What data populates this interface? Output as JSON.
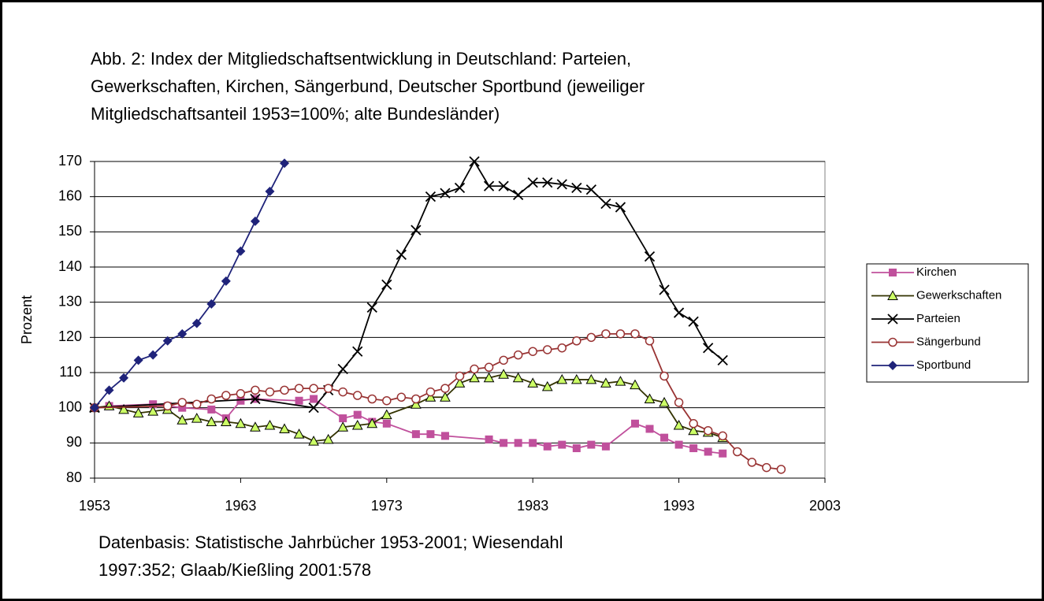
{
  "chart_data": {
    "type": "line",
    "title": [
      "Abb. 2: Index der Mitgliedschaftsentwicklung in Deutschland: Parteien,",
      "Gewerkschaften, Kirchen, Sängerbund, Deutscher Sportbund (jeweiliger",
      "Mitgliedschaftsanteil 1953=100%; alte Bundesländer)"
    ],
    "ylabel": "Prozent",
    "note": [
      "Datenbasis: Statistische Jahrbücher 1953-2001; Wiesendahl",
      "1997:352; Glaab/Kießling 2001:578"
    ],
    "xlim": [
      1953,
      2003
    ],
    "xticks": [
      1953,
      1963,
      1973,
      1983,
      1993,
      2003
    ],
    "ylim": [
      80,
      170
    ],
    "yticks": [
      80,
      90,
      100,
      110,
      120,
      130,
      140,
      150,
      160,
      170
    ],
    "grid": true,
    "legend": "right",
    "series": [
      {
        "name": "Kirchen",
        "color": "#c0509c",
        "marker": "square",
        "x": [
          1953,
          1954,
          1957,
          1958,
          1959,
          1961,
          1962,
          1963,
          1964,
          1967,
          1968,
          1970,
          1971,
          1972,
          1973,
          1975,
          1976,
          1977,
          1980,
          1981,
          1982,
          1983,
          1984,
          1985,
          1986,
          1987,
          1988,
          1990,
          1991,
          1992,
          1993,
          1994,
          1995,
          1996
        ],
        "values": [
          100,
          100.5,
          101,
          100.5,
          100,
          99.5,
          97,
          102,
          102.5,
          102,
          102.5,
          97,
          98,
          96,
          95.5,
          92.5,
          92.5,
          92,
          91,
          90,
          90,
          90,
          89,
          89.5,
          88.5,
          89.5,
          89,
          95.5,
          94,
          91.5,
          89.5,
          88.5,
          87.5,
          87
        ]
      },
      {
        "name": "Gewerkschaften",
        "color": "#333300",
        "marker": "triangle",
        "x": [
          1953,
          1954,
          1955,
          1956,
          1957,
          1958,
          1959,
          1960,
          1961,
          1962,
          1963,
          1964,
          1965,
          1966,
          1967,
          1968,
          1969,
          1970,
          1971,
          1972,
          1973,
          1975,
          1976,
          1977,
          1978,
          1979,
          1980,
          1981,
          1982,
          1983,
          1984,
          1985,
          1986,
          1987,
          1988,
          1989,
          1990,
          1991,
          1992,
          1993,
          1994,
          1995,
          1996
        ],
        "values": [
          100,
          100.5,
          99.5,
          98.5,
          99,
          99.5,
          96.5,
          97,
          96,
          96,
          95.5,
          94.5,
          95,
          94,
          92.5,
          90.5,
          91,
          94.5,
          95,
          95.5,
          98,
          101,
          103,
          103,
          107,
          108.5,
          108.5,
          109.5,
          108.5,
          107,
          106,
          108,
          108,
          108,
          107,
          107.5,
          106.5,
          102.5,
          101.5,
          95,
          93.5,
          93,
          91.5
        ]
      },
      {
        "name": "Parteien",
        "color": "#000000",
        "marker": "x",
        "x": [
          1953,
          1964,
          1968,
          1969,
          1970,
          1971,
          1972,
          1973,
          1974,
          1975,
          1976,
          1977,
          1978,
          1979,
          1980,
          1981,
          1982,
          1983,
          1984,
          1985,
          1986,
          1987,
          1988,
          1989,
          1991,
          1992,
          1993,
          1994,
          1995,
          1996
        ],
        "values": [
          100,
          102.5,
          100,
          105,
          111,
          116,
          128.5,
          135,
          143.5,
          150.5,
          160,
          161,
          162.5,
          170,
          163,
          163,
          160.5,
          164,
          164,
          163.5,
          162.5,
          162,
          158,
          157,
          143,
          133.5,
          127,
          124.5,
          117,
          113.5
        ]
      },
      {
        "name": "Sängerbund",
        "color": "#993333",
        "marker": "circle",
        "x": [
          1953,
          1958,
          1959,
          1960,
          1961,
          1962,
          1963,
          1964,
          1965,
          1966,
          1967,
          1968,
          1969,
          1970,
          1971,
          1972,
          1973,
          1974,
          1975,
          1976,
          1977,
          1978,
          1979,
          1980,
          1981,
          1982,
          1983,
          1984,
          1985,
          1986,
          1987,
          1988,
          1989,
          1990,
          1991,
          1992,
          1993,
          1994,
          1995,
          1996,
          1997,
          1998,
          1999,
          2000
        ],
        "values": [
          100,
          100.5,
          101.5,
          101,
          102.5,
          103.5,
          104,
          105,
          104.5,
          105,
          105.5,
          105.5,
          105.5,
          104.5,
          103.5,
          102.5,
          102,
          103,
          102.5,
          104.5,
          105.5,
          109,
          111,
          111.5,
          113.5,
          115,
          116,
          116.5,
          117,
          119,
          120,
          121,
          121,
          121,
          119,
          109,
          101.5,
          95.5,
          93.5,
          92,
          87.5,
          84.5,
          83,
          82.5
        ]
      },
      {
        "name": "Sportbund",
        "color": "#1f237a",
        "marker": "diamond",
        "x": [
          1953,
          1954,
          1955,
          1956,
          1957,
          1958,
          1959,
          1960,
          1961,
          1962,
          1963,
          1964,
          1965,
          1966
        ],
        "values": [
          100,
          105,
          108.5,
          113.5,
          115,
          119,
          121,
          124,
          129.5,
          136,
          144.5,
          153,
          161.5,
          169.5
        ]
      }
    ]
  }
}
